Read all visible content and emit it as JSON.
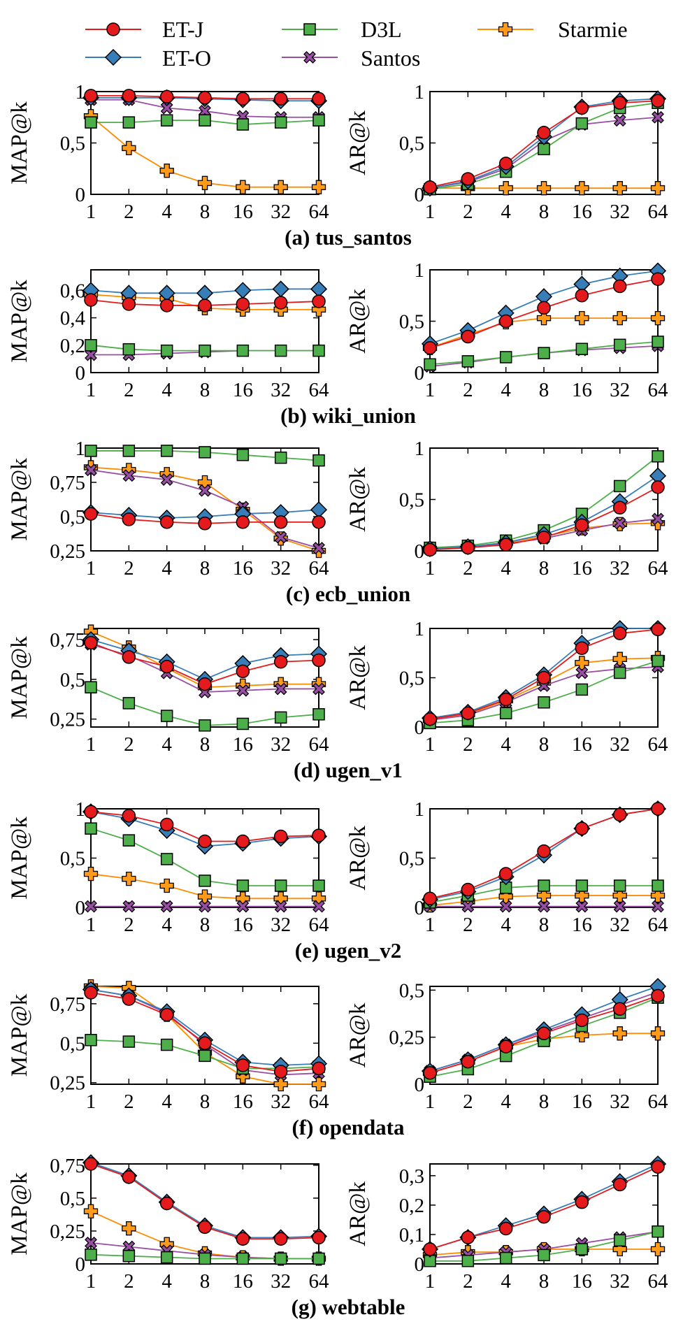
{
  "series_styles": [
    {
      "key": "etj",
      "name": "ET-J",
      "color": "#e41a1c",
      "line": "#e41a1c",
      "marker": "circle"
    },
    {
      "key": "eto",
      "name": "ET-O",
      "color": "#377eb8",
      "line": "#377eb8",
      "marker": "diamond"
    },
    {
      "key": "d3l",
      "name": "D3L",
      "color": "#4daf4a",
      "line": "#4daf4a",
      "marker": "square"
    },
    {
      "key": "santos",
      "name": "Santos",
      "color": "#984ea3",
      "line": "#984ea3",
      "marker": "x"
    },
    {
      "key": "starmie",
      "name": "Starmie",
      "color": "#ff9a1a",
      "line": "#ff8c00",
      "marker": "plus"
    }
  ],
  "chart_data": [
    {
      "type": "line",
      "caption": "(a) tus_santos",
      "ylabel": "MAP@k",
      "x": [
        "1",
        "2",
        "4",
        "8",
        "16",
        "32",
        "64"
      ],
      "ylim": [
        0,
        1
      ],
      "yticks": [
        "0",
        "0,5",
        "1"
      ],
      "ytick_values": [
        0,
        0.5,
        1
      ],
      "series": {
        "etj": [
          0.96,
          0.96,
          0.95,
          0.94,
          0.93,
          0.93,
          0.93
        ],
        "eto": [
          0.94,
          0.94,
          0.94,
          0.93,
          0.92,
          0.91,
          0.91
        ],
        "d3l": [
          0.7,
          0.7,
          0.72,
          0.72,
          0.68,
          0.7,
          0.72
        ],
        "santos": [
          0.92,
          0.92,
          0.84,
          0.81,
          0.76,
          0.75,
          0.75
        ],
        "starmie": [
          0.76,
          0.45,
          0.23,
          0.11,
          0.07,
          0.07,
          0.07
        ]
      }
    },
    {
      "type": "line",
      "caption": "(a) tus_santos",
      "ylabel": "AR@k",
      "x": [
        "1",
        "2",
        "4",
        "8",
        "16",
        "32",
        "64"
      ],
      "ylim": [
        0,
        1
      ],
      "yticks": [
        "0",
        "0,5",
        "1"
      ],
      "ytick_values": [
        0,
        0.5,
        1
      ],
      "series": {
        "etj": [
          0.07,
          0.15,
          0.3,
          0.6,
          0.84,
          0.89,
          0.91
        ],
        "eto": [
          0.06,
          0.13,
          0.27,
          0.56,
          0.85,
          0.91,
          0.93
        ],
        "d3l": [
          0.05,
          0.1,
          0.22,
          0.44,
          0.69,
          0.84,
          0.89
        ],
        "santos": [
          0.06,
          0.12,
          0.25,
          0.52,
          0.68,
          0.72,
          0.75
        ],
        "starmie": [
          0.06,
          0.06,
          0.06,
          0.06,
          0.06,
          0.06,
          0.06
        ]
      }
    },
    {
      "type": "line",
      "caption": "(b) wiki_union",
      "ylabel": "MAP@k",
      "x": [
        "1",
        "2",
        "4",
        "8",
        "16",
        "32",
        "64"
      ],
      "ylim": [
        0,
        0.75
      ],
      "yticks": [
        "0",
        "0,2",
        "0,4",
        "0,6"
      ],
      "ytick_values": [
        0,
        0.2,
        0.4,
        0.6
      ],
      "series": {
        "etj": [
          0.53,
          0.5,
          0.49,
          0.49,
          0.5,
          0.51,
          0.52
        ],
        "eto": [
          0.6,
          0.58,
          0.58,
          0.58,
          0.6,
          0.61,
          0.61
        ],
        "d3l": [
          0.2,
          0.17,
          0.16,
          0.16,
          0.16,
          0.16,
          0.16
        ],
        "santos": [
          0.13,
          0.13,
          0.14,
          0.15,
          0.16,
          0.16,
          0.16
        ],
        "starmie": [
          0.57,
          0.55,
          0.54,
          0.47,
          0.46,
          0.46,
          0.46
        ]
      }
    },
    {
      "type": "line",
      "caption": "(b) wiki_union",
      "ylabel": "AR@k",
      "x": [
        "1",
        "2",
        "4",
        "8",
        "16",
        "32",
        "64"
      ],
      "ylim": [
        0,
        1
      ],
      "yticks": [
        "0",
        "0,5",
        "1"
      ],
      "ytick_values": [
        0,
        0.5,
        1
      ],
      "series": {
        "etj": [
          0.24,
          0.35,
          0.5,
          0.63,
          0.75,
          0.84,
          0.91
        ],
        "eto": [
          0.28,
          0.41,
          0.58,
          0.74,
          0.86,
          0.94,
          0.99
        ],
        "d3l": [
          0.08,
          0.11,
          0.15,
          0.19,
          0.23,
          0.27,
          0.3
        ],
        "santos": [
          0.06,
          0.1,
          0.15,
          0.19,
          0.22,
          0.24,
          0.26
        ],
        "starmie": [
          0.24,
          0.37,
          0.49,
          0.53,
          0.53,
          0.53,
          0.53
        ]
      }
    },
    {
      "type": "line",
      "caption": "(c) ecb_union",
      "ylabel": "MAP@k",
      "x": [
        "1",
        "2",
        "4",
        "8",
        "16",
        "32",
        "64"
      ],
      "ylim": [
        0.25,
        1
      ],
      "yticks": [
        "0,25",
        "0,5",
        "0,75",
        "1"
      ],
      "ytick_values": [
        0.25,
        0.5,
        0.75,
        1
      ],
      "series": {
        "etj": [
          0.52,
          0.48,
          0.46,
          0.45,
          0.46,
          0.46,
          0.46
        ],
        "eto": [
          0.53,
          0.51,
          0.49,
          0.5,
          0.52,
          0.53,
          0.55
        ],
        "d3l": [
          0.98,
          0.98,
          0.98,
          0.97,
          0.95,
          0.93,
          0.91
        ],
        "santos": [
          0.84,
          0.8,
          0.77,
          0.69,
          0.57,
          0.35,
          0.27
        ],
        "starmie": [
          0.86,
          0.84,
          0.81,
          0.75,
          0.55,
          0.34,
          0.25
        ]
      }
    },
    {
      "type": "line",
      "caption": "(c) ecb_union",
      "ylabel": "AR@k",
      "x": [
        "1",
        "2",
        "4",
        "8",
        "16",
        "32",
        "64"
      ],
      "ylim": [
        0,
        1
      ],
      "yticks": [
        "0",
        "0,5",
        "1"
      ],
      "ytick_values": [
        0,
        0.5,
        1
      ],
      "series": {
        "etj": [
          0.01,
          0.03,
          0.06,
          0.13,
          0.25,
          0.42,
          0.62
        ],
        "eto": [
          0.02,
          0.04,
          0.08,
          0.16,
          0.28,
          0.48,
          0.73
        ],
        "d3l": [
          0.03,
          0.05,
          0.1,
          0.2,
          0.36,
          0.63,
          0.92
        ],
        "santos": [
          0.03,
          0.04,
          0.07,
          0.12,
          0.2,
          0.27,
          0.31
        ],
        "starmie": [
          0.02,
          0.04,
          0.08,
          0.14,
          0.22,
          0.26,
          0.27
        ]
      }
    },
    {
      "type": "line",
      "caption": "(d) ugen_v1",
      "ylabel": "MAP@k",
      "x": [
        "1",
        "2",
        "4",
        "8",
        "16",
        "32",
        "64"
      ],
      "ylim": [
        0.2,
        0.82
      ],
      "yticks": [
        "0,25",
        "0,5",
        "0,75"
      ],
      "ytick_values": [
        0.25,
        0.5,
        0.75
      ],
      "series": {
        "etj": [
          0.73,
          0.64,
          0.58,
          0.47,
          0.55,
          0.61,
          0.62
        ],
        "eto": [
          0.75,
          0.68,
          0.61,
          0.5,
          0.6,
          0.65,
          0.66
        ],
        "d3l": [
          0.45,
          0.35,
          0.27,
          0.21,
          0.22,
          0.26,
          0.28
        ],
        "santos": [
          0.72,
          0.65,
          0.54,
          0.42,
          0.43,
          0.44,
          0.44
        ],
        "starmie": [
          0.8,
          0.7,
          0.57,
          0.45,
          0.46,
          0.47,
          0.47
        ]
      }
    },
    {
      "type": "line",
      "caption": "(d) ugen_v1",
      "ylabel": "AR@k",
      "x": [
        "1",
        "2",
        "4",
        "8",
        "16",
        "32",
        "64"
      ],
      "ylim": [
        0,
        1
      ],
      "yticks": [
        "0",
        "0,5",
        "1"
      ],
      "ytick_values": [
        0,
        0.5,
        1
      ],
      "series": {
        "etj": [
          0.08,
          0.14,
          0.28,
          0.5,
          0.8,
          0.95,
          0.99
        ],
        "eto": [
          0.09,
          0.15,
          0.3,
          0.53,
          0.85,
          1.0,
          1.0
        ],
        "d3l": [
          0.04,
          0.07,
          0.14,
          0.25,
          0.38,
          0.55,
          0.67
        ],
        "santos": [
          0.07,
          0.12,
          0.25,
          0.42,
          0.55,
          0.59,
          0.61
        ],
        "starmie": [
          0.07,
          0.13,
          0.27,
          0.45,
          0.65,
          0.69,
          0.7
        ]
      }
    },
    {
      "type": "line",
      "caption": "(e) ugen_v2",
      "ylabel": "MAP@k",
      "x": [
        "1",
        "2",
        "4",
        "8",
        "16",
        "32",
        "64"
      ],
      "ylim": [
        0,
        1
      ],
      "yticks": [
        "0",
        "0,5",
        "1"
      ],
      "ytick_values": [
        0,
        0.5,
        1
      ],
      "series": {
        "etj": [
          0.97,
          0.93,
          0.84,
          0.67,
          0.67,
          0.72,
          0.73
        ],
        "eto": [
          0.97,
          0.9,
          0.78,
          0.62,
          0.65,
          0.7,
          0.72
        ],
        "d3l": [
          0.8,
          0.68,
          0.49,
          0.27,
          0.22,
          0.22,
          0.22
        ],
        "santos": [
          0.01,
          0.01,
          0.01,
          0.01,
          0.01,
          0.01,
          0.01
        ],
        "starmie": [
          0.34,
          0.29,
          0.22,
          0.11,
          0.09,
          0.09,
          0.09
        ]
      }
    },
    {
      "type": "line",
      "caption": "(e) ugen_v2",
      "ylabel": "AR@k",
      "x": [
        "1",
        "2",
        "4",
        "8",
        "16",
        "32",
        "64"
      ],
      "ylim": [
        0,
        1
      ],
      "yticks": [
        "0",
        "0,5",
        "1"
      ],
      "ytick_values": [
        0,
        0.5,
        1
      ],
      "series": {
        "etj": [
          0.09,
          0.18,
          0.34,
          0.57,
          0.8,
          0.94,
          1.0
        ],
        "eto": [
          0.08,
          0.16,
          0.31,
          0.53,
          0.8,
          0.94,
          1.0
        ],
        "d3l": [
          0.05,
          0.12,
          0.2,
          0.22,
          0.22,
          0.22,
          0.22
        ],
        "santos": [
          0.01,
          0.01,
          0.01,
          0.01,
          0.01,
          0.01,
          0.01
        ],
        "starmie": [
          0.02,
          0.06,
          0.11,
          0.12,
          0.12,
          0.12,
          0.12
        ]
      }
    },
    {
      "type": "line",
      "caption": "(f) opendata",
      "ylabel": "MAP@k",
      "x": [
        "1",
        "2",
        "4",
        "8",
        "16",
        "32",
        "64"
      ],
      "ylim": [
        0.24,
        0.86
      ],
      "yticks": [
        "0,25",
        "0,5",
        "0,75"
      ],
      "ytick_values": [
        0.25,
        0.5,
        0.75
      ],
      "series": {
        "etj": [
          0.82,
          0.78,
          0.68,
          0.5,
          0.36,
          0.32,
          0.34
        ],
        "eto": [
          0.84,
          0.8,
          0.7,
          0.52,
          0.38,
          0.36,
          0.37
        ],
        "d3l": [
          0.52,
          0.51,
          0.49,
          0.42,
          0.34,
          0.34,
          0.35
        ],
        "santos": [
          0.84,
          0.8,
          0.69,
          0.49,
          0.33,
          0.3,
          0.31
        ],
        "starmie": [
          0.86,
          0.85,
          0.68,
          0.44,
          0.29,
          0.24,
          0.24
        ]
      }
    },
    {
      "type": "line",
      "caption": "(f) opendata",
      "ylabel": "AR@k",
      "x": [
        "1",
        "2",
        "4",
        "8",
        "16",
        "32",
        "64"
      ],
      "ylim": [
        0,
        0.52
      ],
      "yticks": [
        "0",
        "0,25",
        "0,5"
      ],
      "ytick_values": [
        0,
        0.25,
        0.5
      ],
      "series": {
        "etj": [
          0.06,
          0.12,
          0.2,
          0.27,
          0.34,
          0.4,
          0.47
        ],
        "eto": [
          0.07,
          0.13,
          0.21,
          0.29,
          0.37,
          0.45,
          0.52
        ],
        "d3l": [
          0.04,
          0.08,
          0.15,
          0.23,
          0.31,
          0.38,
          0.46
        ],
        "santos": [
          0.07,
          0.13,
          0.21,
          0.28,
          0.35,
          0.42,
          0.49
        ],
        "starmie": [
          0.06,
          0.12,
          0.2,
          0.24,
          0.26,
          0.27,
          0.27
        ]
      }
    },
    {
      "type": "line",
      "caption": "(g) webtable",
      "ylabel": "MAP@k",
      "x": [
        "1",
        "2",
        "4",
        "8",
        "16",
        "32",
        "64"
      ],
      "ylim": [
        0,
        0.76
      ],
      "yticks": [
        "0",
        "0,25",
        "0,5",
        "0,75"
      ],
      "ytick_values": [
        0,
        0.25,
        0.5,
        0.75
      ],
      "series": {
        "etj": [
          0.76,
          0.66,
          0.46,
          0.28,
          0.19,
          0.19,
          0.2
        ],
        "eto": [
          0.77,
          0.67,
          0.47,
          0.29,
          0.2,
          0.2,
          0.21
        ],
        "d3l": [
          0.07,
          0.06,
          0.05,
          0.04,
          0.04,
          0.04,
          0.04
        ],
        "santos": [
          0.16,
          0.13,
          0.1,
          0.07,
          0.05,
          0.04,
          0.04
        ],
        "starmie": [
          0.4,
          0.27,
          0.15,
          0.08,
          0.05,
          0.04,
          0.04
        ]
      }
    },
    {
      "type": "line",
      "caption": "(g) webtable",
      "ylabel": "AR@k",
      "x": [
        "1",
        "2",
        "4",
        "8",
        "16",
        "32",
        "64"
      ],
      "ylim": [
        0,
        0.34
      ],
      "yticks": [
        "0",
        "0,1",
        "0,2",
        "0,3"
      ],
      "ytick_values": [
        0,
        0.1,
        0.2,
        0.3
      ],
      "series": {
        "etj": [
          0.05,
          0.09,
          0.12,
          0.16,
          0.21,
          0.27,
          0.33
        ],
        "eto": [
          0.05,
          0.09,
          0.13,
          0.17,
          0.22,
          0.28,
          0.34
        ],
        "d3l": [
          0.01,
          0.01,
          0.02,
          0.03,
          0.05,
          0.08,
          0.11
        ],
        "santos": [
          0.02,
          0.03,
          0.04,
          0.05,
          0.07,
          0.09,
          0.11
        ],
        "starmie": [
          0.03,
          0.04,
          0.04,
          0.05,
          0.05,
          0.05,
          0.05
        ]
      }
    }
  ]
}
